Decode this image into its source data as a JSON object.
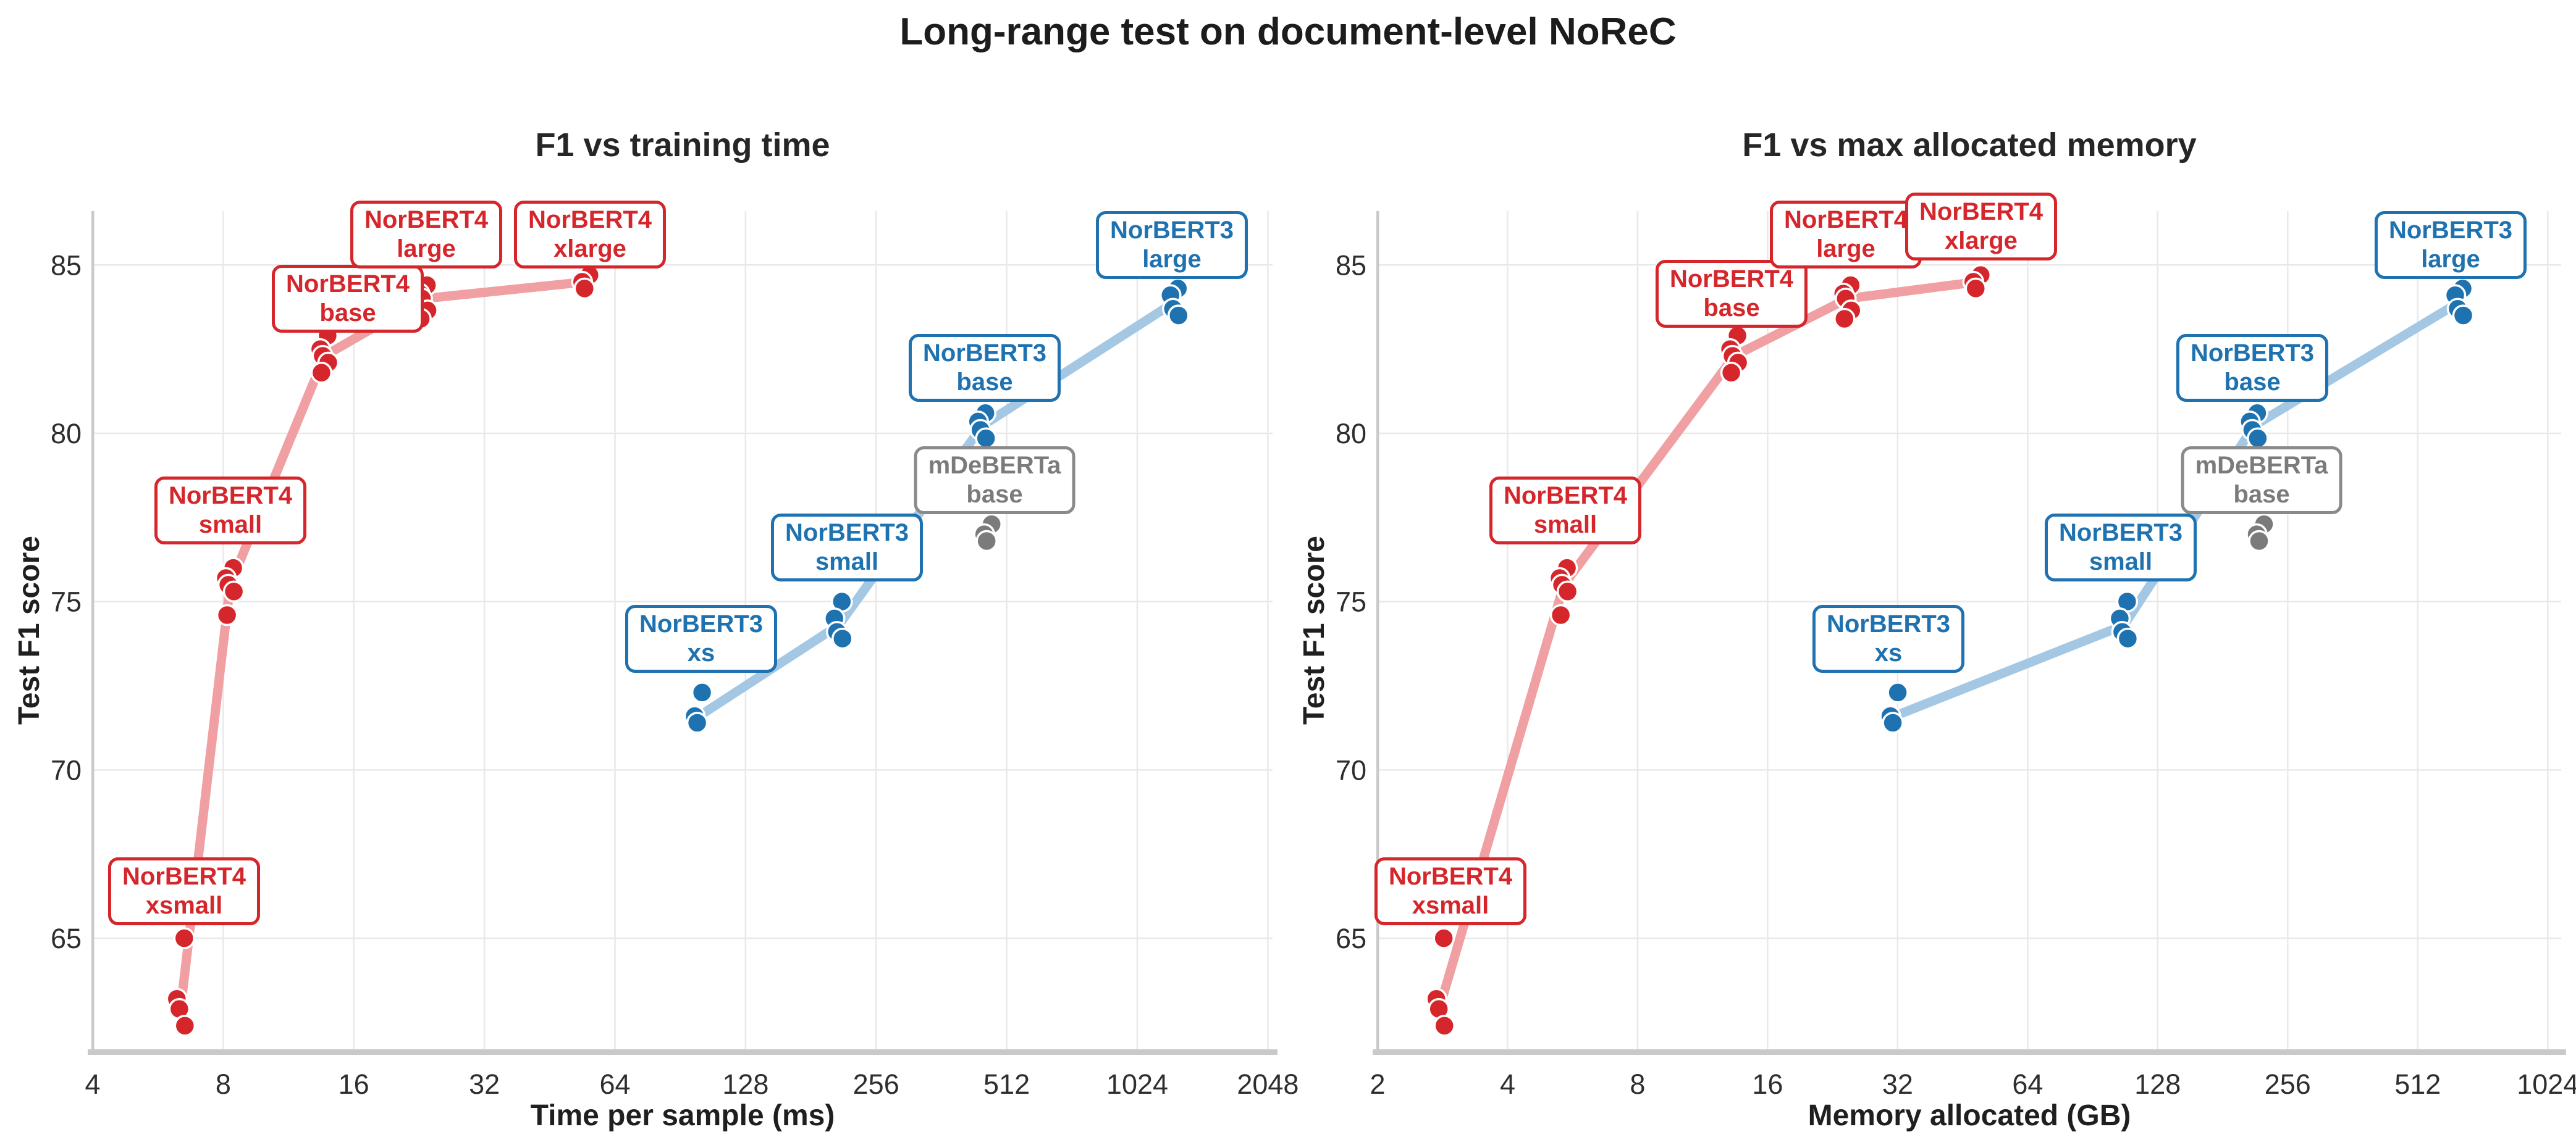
{
  "page_title": "Long-range test on document-level NoReC",
  "colors": {
    "norbert4": "#d5262b",
    "norbert4_line": "#f09fa2",
    "norbert3": "#1f72b0",
    "norbert3_line": "#a4c8e4",
    "mdeberta": "#7b7b7b",
    "grid": "#e9e9eb",
    "spine": "#c9c9c9",
    "tick_text": "#2e2e2e",
    "dot_stroke": "#ffffff"
  },
  "chart_data": [
    {
      "type": "scatter",
      "title": "F1 vs training time",
      "xlabel": "Time per sample (ms)",
      "ylabel": "Test F1 score",
      "x_scale": "log2",
      "x_ticks": [
        4,
        8,
        16,
        32,
        64,
        128,
        256,
        512,
        1024,
        2048
      ],
      "x_range": [
        4,
        2100
      ],
      "y_ticks": [
        65,
        70,
        75,
        80,
        85
      ],
      "y_range": [
        61.7,
        86.6
      ],
      "grid": true,
      "legend": "none",
      "x_key": "time_ms",
      "label_key": "label_time"
    },
    {
      "type": "scatter",
      "title": "F1 vs max allocated memory",
      "xlabel": "Memory allocated (GB)",
      "ylabel": "Test F1 score",
      "x_scale": "log2",
      "x_ticks": [
        2,
        4,
        8,
        16,
        32,
        64,
        128,
        256,
        512,
        1024
      ],
      "x_range": [
        2,
        1100
      ],
      "y_ticks": [
        65,
        70,
        75,
        80,
        85
      ],
      "y_range": [
        61.7,
        86.6
      ],
      "grid": true,
      "legend": "none",
      "x_key": "mem_gb",
      "label_key": "label_mem"
    }
  ],
  "models": [
    {
      "id": "norbert4-xsmall",
      "family": "norbert4",
      "lines": [
        "NorBERT4",
        "xsmall"
      ],
      "time_ms": 6.4,
      "mem_gb": 2.8,
      "f1_runs": [
        65.0,
        63.2,
        62.9,
        62.4
      ],
      "label_time": {
        "x": 6.5,
        "f1": 66.4
      },
      "label_mem": {
        "x": 2.95,
        "f1": 66.4
      }
    },
    {
      "id": "norbert4-small",
      "family": "norbert4",
      "lines": [
        "NorBERT4",
        "small"
      ],
      "time_ms": 8.3,
      "mem_gb": 5.4,
      "f1_runs": [
        76.0,
        75.7,
        75.5,
        75.3,
        74.6
      ],
      "label_time": {
        "x": 8.3,
        "f1": 77.7
      },
      "label_mem": {
        "x": 5.45,
        "f1": 77.7
      }
    },
    {
      "id": "norbert4-base",
      "family": "norbert4",
      "lines": [
        "NorBERT4",
        "base"
      ],
      "time_ms": 13.7,
      "mem_gb": 13.4,
      "f1_runs": [
        82.9,
        82.5,
        82.3,
        82.1,
        81.8
      ],
      "label_time": {
        "x": 15.5,
        "f1": 84.0
      },
      "label_mem": {
        "x": 13.2,
        "f1": 84.15
      }
    },
    {
      "id": "norbert4-large",
      "family": "norbert4",
      "lines": [
        "NorBERT4",
        "large"
      ],
      "time_ms": 23.2,
      "mem_gb": 24.5,
      "f1_runs": [
        84.4,
        84.15,
        84.0,
        83.65,
        83.4
      ],
      "label_time": {
        "x": 23.5,
        "f1": 85.9
      },
      "label_mem": {
        "x": 24.3,
        "f1": 85.9
      }
    },
    {
      "id": "norbert4-xlarge",
      "family": "norbert4",
      "lines": [
        "NorBERT4",
        "xlarge"
      ],
      "time_ms": 55,
      "mem_gb": 49,
      "f1_runs": [
        84.7,
        84.5,
        84.3
      ],
      "label_time": {
        "x": 56,
        "f1": 85.9
      },
      "label_mem": {
        "x": 50,
        "f1": 86.15
      }
    },
    {
      "id": "norbert3-xs",
      "family": "norbert3",
      "lines": [
        "NorBERT3",
        "xs"
      ],
      "time_ms": 100,
      "mem_gb": 31.5,
      "f1_runs": [
        72.3,
        71.6,
        71.4
      ],
      "label_time": {
        "x": 101,
        "f1": 73.9
      },
      "label_mem": {
        "x": 30.5,
        "f1": 73.9
      }
    },
    {
      "id": "norbert3-small",
      "family": "norbert3",
      "lines": [
        "NorBERT3",
        "small"
      ],
      "time_ms": 210,
      "mem_gb": 107,
      "f1_runs": [
        75.0,
        74.5,
        74.1,
        73.9
      ],
      "label_time": {
        "x": 219,
        "f1": 76.6
      },
      "label_mem": {
        "x": 105,
        "f1": 76.6
      }
    },
    {
      "id": "norbert3-base",
      "family": "norbert3",
      "lines": [
        "NorBERT3",
        "base"
      ],
      "time_ms": 450,
      "mem_gb": 214,
      "f1_runs": [
        80.6,
        80.35,
        80.1,
        79.85
      ],
      "label_time": {
        "x": 455,
        "f1": 81.95
      },
      "label_mem": {
        "x": 212,
        "f1": 81.95
      }
    },
    {
      "id": "norbert3-large",
      "family": "norbert3",
      "lines": [
        "NorBERT3",
        "large"
      ],
      "time_ms": 1250,
      "mem_gb": 640,
      "f1_runs": [
        84.3,
        84.1,
        83.7,
        83.5
      ],
      "label_time": {
        "x": 1230,
        "f1": 85.6
      },
      "label_mem": {
        "x": 610,
        "f1": 85.6
      }
    },
    {
      "id": "mdeberta-base",
      "family": "mdeberta",
      "lines": [
        "mDeBERTa",
        "base"
      ],
      "time_ms": 465,
      "mem_gb": 222,
      "f1_runs": [
        77.3,
        77.0,
        76.8
      ],
      "label_time": {
        "x": 480,
        "f1": 78.6
      },
      "label_mem": {
        "x": 223,
        "f1": 78.6
      }
    }
  ],
  "trend_families": [
    "norbert4",
    "norbert3"
  ]
}
